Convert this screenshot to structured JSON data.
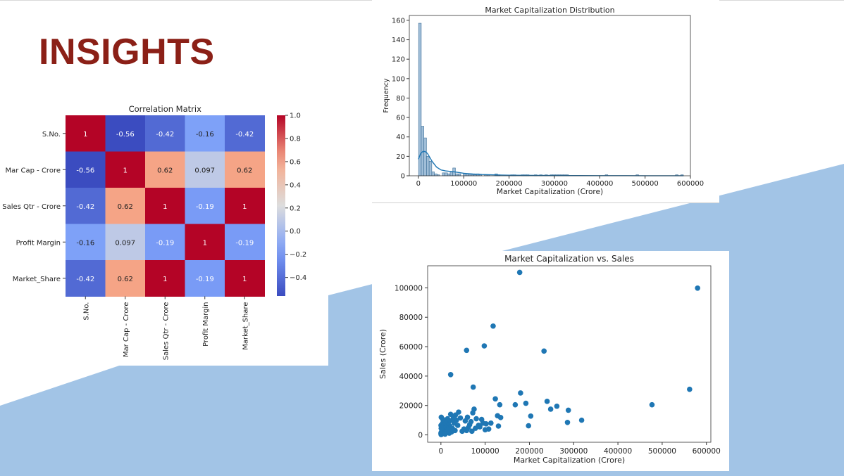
{
  "slide": {
    "title": "INSIGHTS",
    "title_color": "#8b2017",
    "accent_color": "#a2c4e6"
  },
  "chart_data": [
    {
      "type": "heatmap",
      "title": "Correlation Matrix",
      "rows": [
        "S.No.",
        "Mar Cap - Crore",
        "Sales Qtr - Crore",
        "Profit Margin",
        "Market_Share"
      ],
      "cols": [
        "S.No.",
        "Mar Cap - Crore",
        "Sales Qtr - Crore",
        "Profit Margin",
        "Market_Share"
      ],
      "values": [
        [
          1,
          -0.56,
          -0.42,
          -0.16,
          -0.42
        ],
        [
          -0.56,
          1,
          0.62,
          0.097,
          0.62
        ],
        [
          -0.42,
          0.62,
          1,
          -0.19,
          1
        ],
        [
          -0.16,
          0.097,
          -0.19,
          1,
          -0.19
        ],
        [
          -0.42,
          0.62,
          1,
          -0.19,
          1
        ]
      ],
      "labels": [
        [
          "1",
          "-0.56",
          "-0.42",
          "-0.16",
          "-0.42"
        ],
        [
          "-0.56",
          "1",
          "0.62",
          "0.097",
          "0.62"
        ],
        [
          "-0.42",
          "0.62",
          "1",
          "-0.19",
          "1"
        ],
        [
          "-0.16",
          "0.097",
          "-0.19",
          "1",
          "-0.19"
        ],
        [
          "-0.42",
          "0.62",
          "1",
          "-0.19",
          "1"
        ]
      ],
      "colormap": "coolwarm",
      "colorbar_range": [
        -0.56,
        1.0
      ],
      "colorbar_ticks": [
        "1.0",
        "0.8",
        "0.6",
        "0.4",
        "0.2",
        "0.0",
        "−0.2",
        "−0.4"
      ],
      "colorbar_tick_values": [
        1.0,
        0.8,
        0.6,
        0.4,
        0.2,
        0.0,
        -0.2,
        -0.4
      ]
    },
    {
      "type": "bar",
      "title": "Market Capitalization Distribution",
      "xlabel": "Market Capitalization (Crore)",
      "ylabel": "Frequency",
      "xlim": [
        -20000,
        600000
      ],
      "ylim": [
        0,
        165
      ],
      "xticks": [
        "0",
        "100000",
        "200000",
        "300000",
        "400000",
        "500000",
        "600000"
      ],
      "xtick_values": [
        0,
        100000,
        200000,
        300000,
        400000,
        500000,
        600000
      ],
      "yticks": [
        "0",
        "20",
        "40",
        "60",
        "80",
        "100",
        "120",
        "140",
        "160"
      ],
      "ytick_values": [
        0,
        20,
        40,
        60,
        80,
        100,
        120,
        140,
        160
      ],
      "bin_width": 5800,
      "bin_starts": [
        500,
        6300,
        12100,
        17900,
        23700,
        29500,
        35300,
        41100,
        52700,
        58500,
        64300,
        70100,
        75900,
        81700,
        87500,
        99100,
        104900,
        110700,
        116500,
        122300,
        128100,
        133900,
        145500,
        151300,
        168700,
        174500,
        203500,
        209300,
        226700,
        232500,
        238300,
        255700,
        267300,
        279000,
        290600,
        296400,
        302200,
        308000,
        313800,
        319600,
        325400,
        412000,
        480000,
        567000,
        578600
      ],
      "counts": [
        157,
        51,
        39,
        20,
        15,
        4,
        2,
        1,
        3,
        3,
        2,
        4,
        8,
        2,
        2,
        2,
        2,
        1,
        1,
        1,
        2,
        1,
        1,
        1,
        2,
        1,
        1,
        1,
        1,
        1,
        1,
        1,
        1,
        1,
        1,
        1,
        1,
        1,
        1,
        1,
        1,
        1,
        1,
        1,
        1
      ],
      "kde_x": [
        0,
        5000,
        10000,
        15000,
        20000,
        25000,
        30000,
        40000,
        50000,
        60000,
        70000,
        80000,
        90000,
        100000,
        120000,
        140000,
        160000,
        180000,
        200000,
        230000,
        260000,
        300000,
        330000,
        350000,
        400000,
        450000,
        500000,
        550000,
        585000
      ],
      "kde_y": [
        17,
        23,
        25,
        25,
        23,
        19,
        15,
        9,
        6,
        5,
        4.5,
        4,
        3.3,
        2.6,
        1.8,
        1.3,
        1.0,
        0.8,
        0.6,
        0.5,
        0.4,
        0.3,
        0.25,
        0.2,
        0.15,
        0.12,
        0.1,
        0.08,
        0.05
      ]
    },
    {
      "type": "scatter",
      "title": "Market Capitalization vs. Sales",
      "xlabel": "Market Capitalization (Crore)",
      "ylabel": "Sales (Crore)",
      "xlim": [
        -30000,
        610000
      ],
      "ylim": [
        -5000,
        115000
      ],
      "xticks": [
        "0",
        "100000",
        "200000",
        "300000",
        "400000",
        "500000",
        "600000"
      ],
      "xtick_values": [
        0,
        100000,
        200000,
        300000,
        400000,
        500000,
        600000
      ],
      "yticks": [
        "0",
        "20000",
        "40000",
        "60000",
        "80000",
        "100000"
      ],
      "ytick_values": [
        0,
        20000,
        40000,
        60000,
        80000,
        100000
      ],
      "color": "#1f77b4",
      "points": [
        [
          178000,
          110500
        ],
        [
          580000,
          99800
        ],
        [
          118000,
          74000
        ],
        [
          98000,
          60500
        ],
        [
          58000,
          57500
        ],
        [
          233000,
          57000
        ],
        [
          22000,
          41000
        ],
        [
          73000,
          32500
        ],
        [
          562000,
          31000
        ],
        [
          180000,
          28500
        ],
        [
          477000,
          20500
        ],
        [
          240000,
          22800
        ],
        [
          262000,
          19500
        ],
        [
          192000,
          21500
        ],
        [
          168000,
          20500
        ],
        [
          133000,
          20500
        ],
        [
          123000,
          24500
        ],
        [
          248000,
          17500
        ],
        [
          288000,
          16800
        ],
        [
          203000,
          12800
        ],
        [
          318000,
          10000
        ],
        [
          286000,
          8500
        ],
        [
          198000,
          6200
        ],
        [
          128000,
          13000
        ],
        [
          135000,
          11800
        ],
        [
          113000,
          8000
        ],
        [
          102000,
          7500
        ],
        [
          95000,
          8000
        ],
        [
          88000,
          5500
        ],
        [
          80000,
          11000
        ],
        [
          75000,
          17500
        ],
        [
          72000,
          15000
        ],
        [
          68000,
          9000
        ],
        [
          65000,
          7000
        ],
        [
          62000,
          5000
        ],
        [
          60000,
          12000
        ],
        [
          58000,
          3000
        ],
        [
          55000,
          9500
        ],
        [
          130000,
          6000
        ],
        [
          108000,
          4000
        ],
        [
          85000,
          6500
        ],
        [
          78000,
          4500
        ],
        [
          92000,
          10500
        ],
        [
          100000,
          3500
        ],
        [
          70000,
          2500
        ],
        [
          40000,
          15500
        ],
        [
          33000,
          13500
        ],
        [
          35000,
          10000
        ],
        [
          30000,
          8000
        ],
        [
          28000,
          12500
        ],
        [
          25000,
          10000
        ],
        [
          22000,
          14000
        ],
        [
          20000,
          6000
        ],
        [
          18000,
          9000
        ],
        [
          16000,
          4000
        ],
        [
          15000,
          11000
        ],
        [
          14000,
          2500
        ],
        [
          12000,
          7500
        ],
        [
          11000,
          5000
        ],
        [
          10000,
          3000
        ],
        [
          9000,
          9000
        ],
        [
          8000,
          1500
        ],
        [
          7000,
          6000
        ],
        [
          6000,
          4000
        ],
        [
          5000,
          2000
        ],
        [
          4000,
          8000
        ],
        [
          3500,
          1000
        ],
        [
          3000,
          5000
        ],
        [
          2500,
          3000
        ],
        [
          2000,
          500
        ],
        [
          1500,
          2000
        ],
        [
          1000,
          1000
        ],
        [
          800,
          12000
        ],
        [
          600,
          4500
        ],
        [
          500,
          200
        ],
        [
          300,
          1500
        ],
        [
          200,
          6500
        ],
        [
          100,
          800
        ],
        [
          4500,
          10500
        ],
        [
          26000,
          4500
        ],
        [
          38000,
          6500
        ],
        [
          48000,
          2500
        ],
        [
          24000,
          2000
        ],
        [
          19000,
          1200
        ],
        [
          13000,
          1800
        ],
        [
          44000,
          11500
        ],
        [
          52000,
          4000
        ],
        [
          32000,
          3000
        ],
        [
          17000,
          3500
        ],
        [
          9500,
          500
        ]
      ]
    }
  ]
}
